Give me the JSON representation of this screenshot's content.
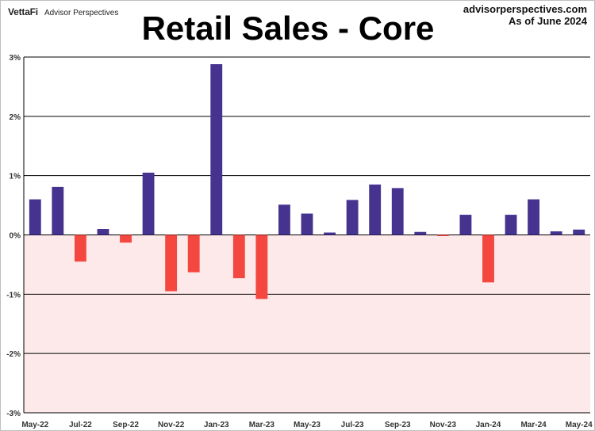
{
  "header": {
    "brand_logo": "VettaFi",
    "brand_name": "Advisor Perspectives",
    "source_line1": "advisorperspectives.com",
    "source_line2": "As of June 2024",
    "title": "Retail Sales - Core"
  },
  "colors": {
    "positive_bar": "#46338f",
    "negative_bar": "#f3473f",
    "negative_zone": "#fde9e9",
    "grid": "#000000"
  },
  "chart_data": {
    "type": "bar",
    "title": "Retail Sales - Core",
    "xlabel": "",
    "ylabel": "",
    "ylim": [
      -3,
      3
    ],
    "y_unit": "%",
    "y_ticks": [
      3,
      2,
      1,
      0,
      -1,
      -2,
      -3
    ],
    "y_tick_labels": [
      "3%",
      "2%",
      "1%",
      "0%",
      "-1%",
      "-2%",
      "-3%"
    ],
    "grid": true,
    "categories": [
      "May-22",
      "Jun-22",
      "Jul-22",
      "Aug-22",
      "Sep-22",
      "Oct-22",
      "Nov-22",
      "Dec-22",
      "Jan-23",
      "Feb-23",
      "Mar-23",
      "Apr-23",
      "May-23",
      "Jun-23",
      "Jul-23",
      "Aug-23",
      "Sep-23",
      "Oct-23",
      "Nov-23",
      "Dec-23",
      "Jan-24",
      "Feb-24",
      "Mar-24",
      "Apr-24",
      "May-24"
    ],
    "values": [
      0.6,
      0.81,
      -0.45,
      0.1,
      -0.13,
      1.05,
      -0.95,
      -0.63,
      2.88,
      -0.73,
      -1.08,
      0.51,
      0.36,
      0.04,
      0.59,
      0.85,
      0.79,
      0.05,
      -0.02,
      0.34,
      -0.8,
      0.34,
      0.6,
      0.06,
      0.09
    ],
    "x_tick_labels": [
      "May-22",
      "Jul-22",
      "Sep-22",
      "Nov-22",
      "Jan-23",
      "Mar-23",
      "May-23",
      "Jul-23",
      "Sep-23",
      "Nov-23",
      "Jan-24",
      "Mar-24",
      "May-24"
    ]
  }
}
